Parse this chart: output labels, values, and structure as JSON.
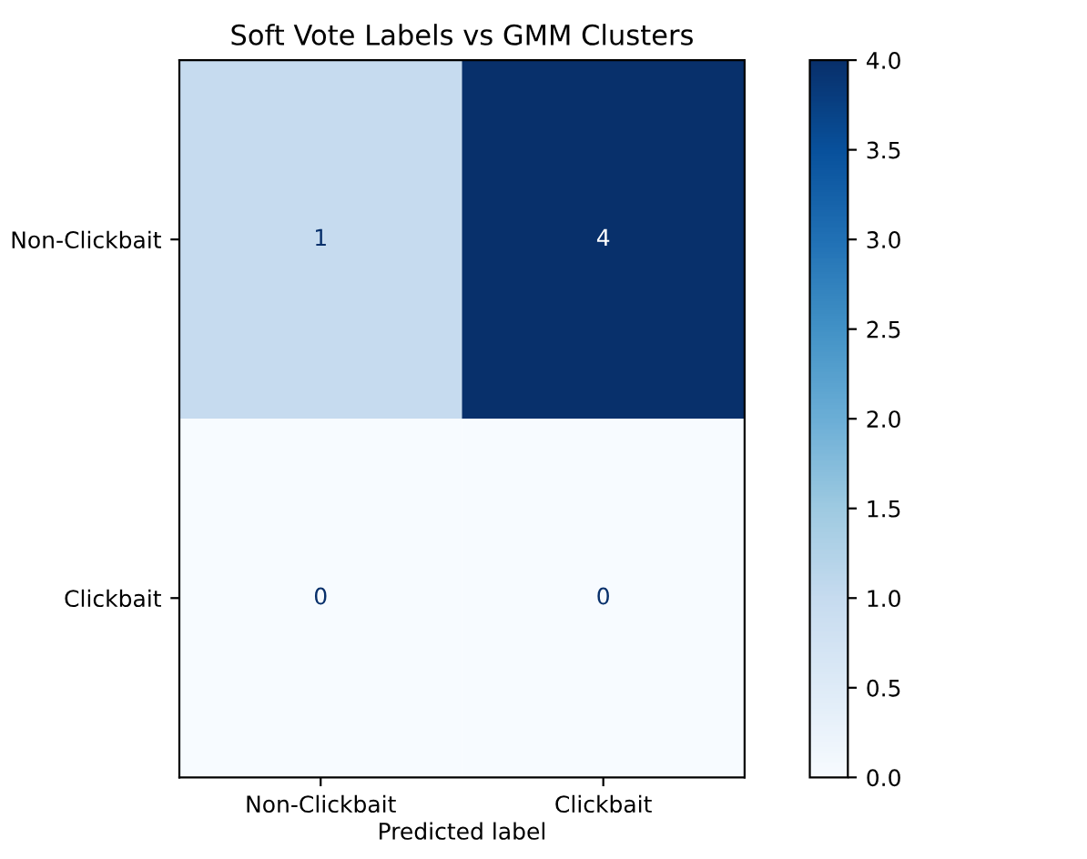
{
  "chart_data": {
    "type": "heatmap",
    "title": "Soft Vote Labels vs GMM Clusters",
    "xlabel": "Predicted label",
    "categories": [
      "Non-Clickbait",
      "Clickbait"
    ],
    "y_categories": [
      "Non-Clickbait",
      "Clickbait"
    ],
    "cells": [
      [
        1,
        4
      ],
      [
        0,
        0
      ]
    ],
    "data_labels": true,
    "clim": [
      0,
      4
    ],
    "cticks": [
      {
        "value": 0,
        "label": "0.0"
      },
      0.5,
      {
        "value": 1,
        "label": "1.0"
      },
      1.5,
      {
        "value": 2,
        "label": "2.0"
      },
      2.5,
      {
        "value": 3,
        "label": "3.0"
      },
      3.5,
      {
        "value": 4,
        "label": "4.0"
      }
    ]
  }
}
